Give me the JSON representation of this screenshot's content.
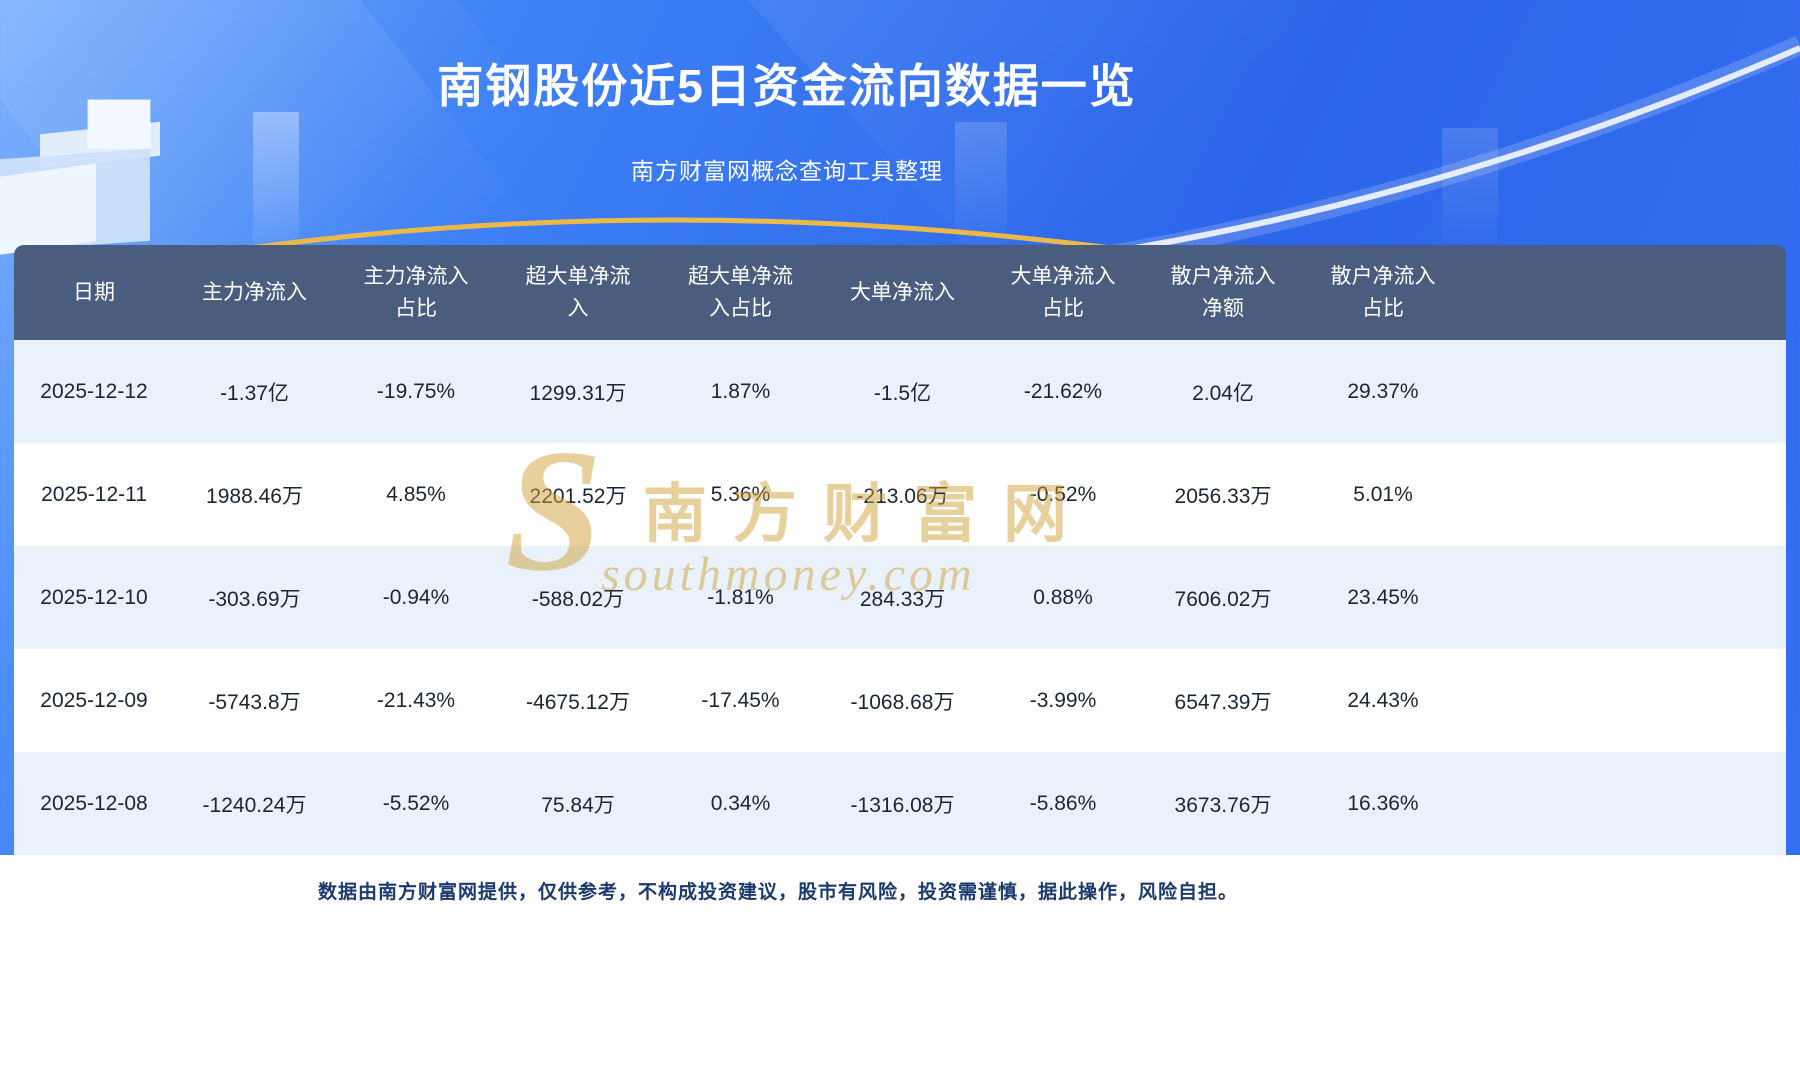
{
  "page": {
    "title": "南钢股份近5日资金流向数据一览",
    "subtitle": "南方财富网概念查询工具整理",
    "footer_note": "数据由南方财富网提供，仅供参考，不构成投资建议，股市有风险，投资需谨慎，据此操作，风险自担。"
  },
  "watermark": {
    "initial": "S",
    "brand": "南方财富网",
    "domain": "southmoney.com",
    "color": "#d0a23c"
  },
  "colors": {
    "background_accent": "#2c65ea",
    "table_header_bg": "#4a5d7f",
    "row_alt_bg": "#e9f1fb",
    "gold_arc": "#edb845",
    "footer_text": "#1d3a6e"
  },
  "chart_data": {
    "type": "table",
    "title": "南钢股份近5日资金流向数据一览",
    "subtitle": "南方财富网概念查询工具整理",
    "columns": [
      "日期",
      "主力净流入",
      "主力净流入\n占比",
      "超大单净流\n入",
      "超大单净流\n入占比",
      "大单净流入",
      "大单净流入\n占比",
      "散户净流入\n净额",
      "散户净流入\n占比"
    ],
    "rows": [
      [
        "2025-12-12",
        "-1.37亿",
        "-19.75%",
        "1299.31万",
        "1.87%",
        "-1.5亿",
        "-21.62%",
        "2.04亿",
        "29.37%"
      ],
      [
        "2025-12-11",
        "1988.46万",
        "4.85%",
        "2201.52万",
        "5.36%",
        "-213.06万",
        "-0.52%",
        "2056.33万",
        "5.01%"
      ],
      [
        "2025-12-10",
        "-303.69万",
        "-0.94%",
        "-588.02万",
        "-1.81%",
        "284.33万",
        "0.88%",
        "7606.02万",
        "23.45%"
      ],
      [
        "2025-12-09",
        "-5743.8万",
        "-21.43%",
        "-4675.12万",
        "-17.45%",
        "-1068.68万",
        "-3.99%",
        "6547.39万",
        "24.43%"
      ],
      [
        "2025-12-08",
        "-1240.24万",
        "-5.52%",
        "75.84万",
        "0.34%",
        "-1316.08万",
        "-5.86%",
        "3673.76万",
        "16.36%"
      ]
    ],
    "footer_note": "数据由南方财富网提供，仅供参考，不构成投资建议，股市有风险，投资需谨慎，据此操作，风险自担。"
  }
}
